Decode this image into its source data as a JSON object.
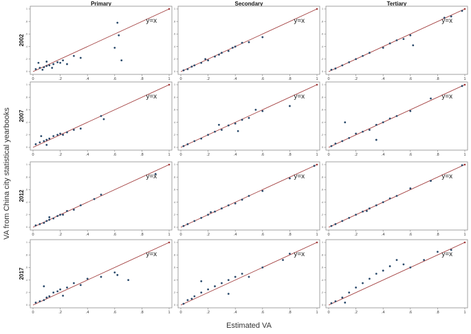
{
  "chart_data": {
    "type": "scatter",
    "title": "",
    "xlabel": "Estimated VA",
    "ylabel": "VA from China city statistical yearbooks",
    "columns": [
      "Primary",
      "Secondary",
      "Tertiary"
    ],
    "rows": [
      "2002",
      "2007",
      "2012",
      "2017"
    ],
    "reference_label": "y=x",
    "xlim": [
      0,
      1
    ],
    "ylim": [
      0,
      1
    ],
    "xticks": [
      0,
      0.2,
      0.4,
      0.6,
      0.8,
      1
    ],
    "xtick_labels": [
      "0",
      ".2",
      ".4",
      ".6",
      ".8",
      "1"
    ],
    "yticks": [
      0,
      0.2,
      0.4,
      0.6,
      0.8,
      1
    ],
    "ytick_labels": [
      "0",
      ".2",
      ".4",
      ".6",
      ".8",
      "1"
    ],
    "colors": {
      "points": "#2a4a6b",
      "reference_line": "#a03a3a",
      "frame": "#8a8a8a"
    },
    "panels": [
      {
        "row": "2002",
        "column": "Primary",
        "points": [
          [
            0.02,
            0.04
          ],
          [
            0.05,
            0.06
          ],
          [
            0.08,
            0.07
          ],
          [
            0.1,
            0.09
          ],
          [
            0.12,
            0.1
          ],
          [
            0.15,
            0.12
          ],
          [
            0.18,
            0.15
          ],
          [
            0.2,
            0.14
          ],
          [
            0.22,
            0.18
          ],
          [
            0.3,
            0.25
          ],
          [
            0.35,
            0.22
          ],
          [
            0.6,
            0.38
          ],
          [
            0.62,
            0.78
          ],
          [
            0.63,
            0.58
          ],
          [
            0.65,
            0.18
          ],
          [
            0.04,
            0.14
          ],
          [
            0.1,
            0.16
          ],
          [
            0.14,
            0.06
          ],
          [
            0.25,
            0.12
          ],
          [
            0.07,
            0.03
          ]
        ]
      },
      {
        "row": "2002",
        "column": "Secondary",
        "points": [
          [
            0.02,
            0.02
          ],
          [
            0.05,
            0.04
          ],
          [
            0.08,
            0.08
          ],
          [
            0.1,
            0.1
          ],
          [
            0.15,
            0.14
          ],
          [
            0.2,
            0.18
          ],
          [
            0.25,
            0.24
          ],
          [
            0.3,
            0.3
          ],
          [
            0.35,
            0.33
          ],
          [
            0.4,
            0.4
          ],
          [
            0.45,
            0.46
          ],
          [
            0.5,
            0.47
          ],
          [
            0.6,
            0.55
          ],
          [
            0.38,
            0.38
          ],
          [
            0.28,
            0.27
          ],
          [
            0.18,
            0.2
          ]
        ]
      },
      {
        "row": "2002",
        "column": "Tertiary",
        "points": [
          [
            0.02,
            0.03
          ],
          [
            0.05,
            0.05
          ],
          [
            0.1,
            0.1
          ],
          [
            0.15,
            0.15
          ],
          [
            0.2,
            0.2
          ],
          [
            0.25,
            0.25
          ],
          [
            0.3,
            0.3
          ],
          [
            0.4,
            0.38
          ],
          [
            0.45,
            0.45
          ],
          [
            0.5,
            0.5
          ],
          [
            0.55,
            0.52
          ],
          [
            0.6,
            0.58
          ],
          [
            0.62,
            0.42
          ],
          [
            0.85,
            0.86
          ],
          [
            0.9,
            0.88
          ],
          [
            0.98,
            0.97
          ]
        ]
      },
      {
        "row": "2007",
        "column": "Primary",
        "points": [
          [
            0.02,
            0.05
          ],
          [
            0.05,
            0.08
          ],
          [
            0.08,
            0.1
          ],
          [
            0.1,
            0.12
          ],
          [
            0.12,
            0.14
          ],
          [
            0.15,
            0.18
          ],
          [
            0.18,
            0.2
          ],
          [
            0.2,
            0.22
          ],
          [
            0.22,
            0.2
          ],
          [
            0.25,
            0.24
          ],
          [
            0.3,
            0.28
          ],
          [
            0.35,
            0.3
          ],
          [
            0.5,
            0.5
          ],
          [
            0.52,
            0.45
          ],
          [
            0.1,
            0.04
          ],
          [
            0.06,
            0.18
          ]
        ]
      },
      {
        "row": "2007",
        "column": "Secondary",
        "points": [
          [
            0.02,
            0.02
          ],
          [
            0.05,
            0.05
          ],
          [
            0.1,
            0.1
          ],
          [
            0.15,
            0.14
          ],
          [
            0.2,
            0.2
          ],
          [
            0.25,
            0.25
          ],
          [
            0.3,
            0.28
          ],
          [
            0.35,
            0.35
          ],
          [
            0.4,
            0.38
          ],
          [
            0.45,
            0.44
          ],
          [
            0.5,
            0.47
          ],
          [
            0.55,
            0.6
          ],
          [
            0.6,
            0.58
          ],
          [
            0.8,
            0.66
          ],
          [
            0.42,
            0.26
          ],
          [
            0.28,
            0.36
          ]
        ]
      },
      {
        "row": "2007",
        "column": "Tertiary",
        "points": [
          [
            0.02,
            0.02
          ],
          [
            0.05,
            0.06
          ],
          [
            0.1,
            0.1
          ],
          [
            0.15,
            0.15
          ],
          [
            0.2,
            0.22
          ],
          [
            0.25,
            0.25
          ],
          [
            0.3,
            0.28
          ],
          [
            0.35,
            0.36
          ],
          [
            0.4,
            0.4
          ],
          [
            0.45,
            0.46
          ],
          [
            0.5,
            0.5
          ],
          [
            0.6,
            0.58
          ],
          [
            0.75,
            0.78
          ],
          [
            0.98,
            0.98
          ],
          [
            0.12,
            0.4
          ],
          [
            0.35,
            0.12
          ]
        ]
      },
      {
        "row": "2012",
        "column": "Primary",
        "points": [
          [
            0.02,
            0.03
          ],
          [
            0.05,
            0.05
          ],
          [
            0.08,
            0.07
          ],
          [
            0.1,
            0.1
          ],
          [
            0.12,
            0.12
          ],
          [
            0.15,
            0.14
          ],
          [
            0.18,
            0.18
          ],
          [
            0.2,
            0.2
          ],
          [
            0.22,
            0.2
          ],
          [
            0.25,
            0.26
          ],
          [
            0.3,
            0.28
          ],
          [
            0.35,
            0.35
          ],
          [
            0.45,
            0.45
          ],
          [
            0.5,
            0.52
          ],
          [
            0.9,
            0.85
          ],
          [
            0.12,
            0.16
          ]
        ]
      },
      {
        "row": "2012",
        "column": "Secondary",
        "points": [
          [
            0.02,
            0.02
          ],
          [
            0.05,
            0.05
          ],
          [
            0.1,
            0.1
          ],
          [
            0.15,
            0.15
          ],
          [
            0.2,
            0.2
          ],
          [
            0.25,
            0.25
          ],
          [
            0.3,
            0.3
          ],
          [
            0.35,
            0.35
          ],
          [
            0.4,
            0.38
          ],
          [
            0.45,
            0.44
          ],
          [
            0.5,
            0.5
          ],
          [
            0.6,
            0.58
          ],
          [
            0.8,
            0.78
          ],
          [
            0.98,
            0.98
          ],
          [
            0.22,
            0.24
          ]
        ]
      },
      {
        "row": "2012",
        "column": "Tertiary",
        "points": [
          [
            0.02,
            0.02
          ],
          [
            0.05,
            0.05
          ],
          [
            0.1,
            0.1
          ],
          [
            0.15,
            0.15
          ],
          [
            0.2,
            0.2
          ],
          [
            0.25,
            0.25
          ],
          [
            0.3,
            0.3
          ],
          [
            0.35,
            0.35
          ],
          [
            0.4,
            0.4
          ],
          [
            0.45,
            0.46
          ],
          [
            0.5,
            0.5
          ],
          [
            0.6,
            0.62
          ],
          [
            0.75,
            0.74
          ],
          [
            0.98,
            0.99
          ],
          [
            0.28,
            0.26
          ]
        ]
      },
      {
        "row": "2017",
        "column": "Primary",
        "points": [
          [
            0.02,
            0.04
          ],
          [
            0.05,
            0.06
          ],
          [
            0.08,
            0.08
          ],
          [
            0.1,
            0.12
          ],
          [
            0.12,
            0.14
          ],
          [
            0.15,
            0.2
          ],
          [
            0.18,
            0.22
          ],
          [
            0.2,
            0.25
          ],
          [
            0.25,
            0.28
          ],
          [
            0.3,
            0.35
          ],
          [
            0.35,
            0.32
          ],
          [
            0.4,
            0.42
          ],
          [
            0.5,
            0.45
          ],
          [
            0.6,
            0.52
          ],
          [
            0.62,
            0.48
          ],
          [
            0.7,
            0.4
          ],
          [
            0.08,
            0.3
          ],
          [
            0.22,
            0.15
          ]
        ]
      },
      {
        "row": "2017",
        "column": "Secondary",
        "points": [
          [
            0.02,
            0.02
          ],
          [
            0.05,
            0.08
          ],
          [
            0.08,
            0.1
          ],
          [
            0.1,
            0.14
          ],
          [
            0.15,
            0.2
          ],
          [
            0.2,
            0.25
          ],
          [
            0.25,
            0.3
          ],
          [
            0.3,
            0.35
          ],
          [
            0.35,
            0.4
          ],
          [
            0.4,
            0.45
          ],
          [
            0.45,
            0.5
          ],
          [
            0.5,
            0.45
          ],
          [
            0.6,
            0.6
          ],
          [
            0.75,
            0.72
          ],
          [
            0.8,
            0.82
          ],
          [
            0.35,
            0.18
          ],
          [
            0.15,
            0.38
          ]
        ]
      },
      {
        "row": "2017",
        "column": "Tertiary",
        "points": [
          [
            0.02,
            0.03
          ],
          [
            0.05,
            0.06
          ],
          [
            0.1,
            0.12
          ],
          [
            0.15,
            0.2
          ],
          [
            0.2,
            0.28
          ],
          [
            0.25,
            0.35
          ],
          [
            0.3,
            0.42
          ],
          [
            0.35,
            0.5
          ],
          [
            0.4,
            0.55
          ],
          [
            0.45,
            0.62
          ],
          [
            0.5,
            0.72
          ],
          [
            0.55,
            0.65
          ],
          [
            0.6,
            0.6
          ],
          [
            0.7,
            0.72
          ],
          [
            0.8,
            0.85
          ],
          [
            0.9,
            0.88
          ],
          [
            0.12,
            0.04
          ]
        ]
      }
    ]
  }
}
